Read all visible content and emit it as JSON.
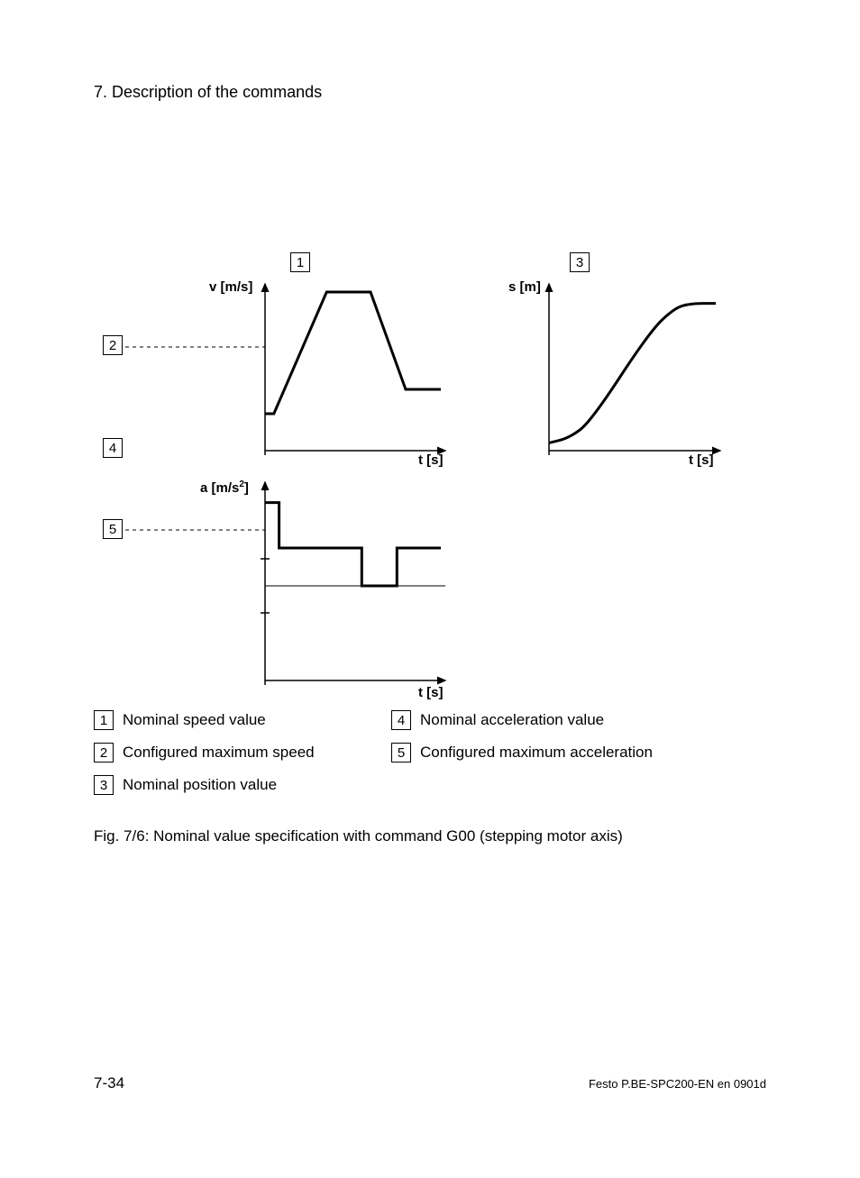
{
  "heading": "7.   Description of the commands",
  "figure": {
    "callouts": {
      "c1": "1",
      "c2": "2",
      "c3": "3",
      "c4": "4",
      "c5": "5"
    },
    "axis_labels": {
      "v": "v [m/s]",
      "s": "s [m]",
      "a_pre": "a [m/s",
      "a_sup": "2",
      "a_post": "]",
      "t": "t [s]"
    },
    "charts": {
      "velocity": {
        "type": "line",
        "x_range": [
          0,
          100
        ],
        "y_range": [
          0,
          100
        ],
        "stroke": "#000000",
        "stroke_width": 3,
        "points": [
          [
            0,
            20
          ],
          [
            5,
            20
          ],
          [
            35,
            95
          ],
          [
            60,
            95
          ],
          [
            80,
            35
          ],
          [
            100,
            35
          ]
        ],
        "dashed_level_y": 95
      },
      "position": {
        "type": "line",
        "x_range": [
          0,
          100
        ],
        "y_range": [
          0,
          100
        ],
        "stroke": "#000000",
        "stroke_width": 3,
        "points": [
          [
            0,
            2
          ],
          [
            12,
            5
          ],
          [
            25,
            15
          ],
          [
            60,
            70
          ],
          [
            75,
            85
          ],
          [
            85,
            88
          ],
          [
            100,
            88
          ]
        ]
      },
      "acceleration": {
        "type": "step",
        "x_range": [
          0,
          100
        ],
        "y_range": [
          -100,
          100
        ],
        "stroke": "#000000",
        "stroke_width": 3,
        "points": [
          [
            0,
            88
          ],
          [
            8,
            88
          ],
          [
            8,
            40
          ],
          [
            55,
            40
          ],
          [
            55,
            0
          ],
          [
            75,
            0
          ],
          [
            75,
            40
          ],
          [
            100,
            40
          ]
        ],
        "dashed_level_y": 88,
        "ticks_y": [
          40,
          -40
        ]
      }
    },
    "colors": {
      "axis": "#000000",
      "dashed": "#000000",
      "background": "#ffffff"
    }
  },
  "legend": {
    "items": [
      {
        "n": "1",
        "text": "Nominal speed value"
      },
      {
        "n": "2",
        "text": "Configured maximum speed"
      },
      {
        "n": "3",
        "text": "Nominal position value"
      },
      {
        "n": "4",
        "text": "Nominal acceleration value"
      },
      {
        "n": "5",
        "text": "Configured maximum acceleration"
      }
    ]
  },
  "caption": "Fig. 7/6:    Nominal value specification with command G00 (stepping motor axis)",
  "footer": {
    "page": "7-34",
    "doc": "Festo  P.BE-SPC200-EN  en 0901d"
  }
}
